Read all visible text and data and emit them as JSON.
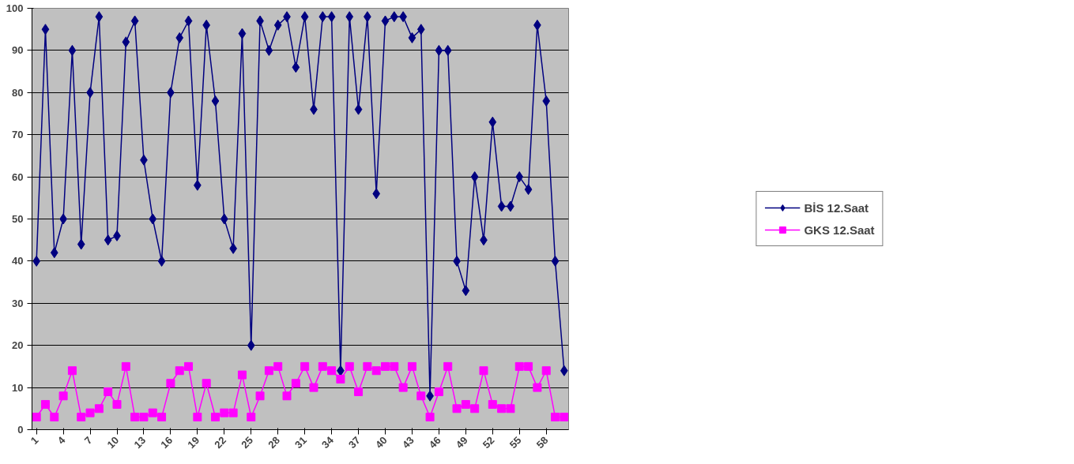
{
  "chart_data": {
    "type": "line",
    "x": [
      1,
      2,
      3,
      4,
      5,
      6,
      7,
      8,
      9,
      10,
      11,
      12,
      13,
      14,
      15,
      16,
      17,
      18,
      19,
      20,
      21,
      22,
      23,
      24,
      25,
      26,
      27,
      28,
      29,
      30,
      31,
      32,
      33,
      34,
      35,
      36,
      37,
      38,
      39,
      40,
      41,
      42,
      43,
      44,
      45,
      46,
      47,
      48,
      49,
      50,
      51,
      52,
      53,
      54,
      55,
      56,
      57,
      58,
      59,
      60
    ],
    "xlim": [
      0.5,
      60.5
    ],
    "xticks": [
      1,
      4,
      7,
      10,
      13,
      16,
      19,
      22,
      25,
      28,
      31,
      34,
      37,
      40,
      43,
      46,
      49,
      52,
      55,
      58
    ],
    "ylim": [
      0,
      100
    ],
    "yticks": [
      0,
      10,
      20,
      30,
      40,
      50,
      60,
      70,
      80,
      90,
      100
    ],
    "grid": "y",
    "legend": "right",
    "line_style": "solid",
    "series": [
      {
        "name": "BİS 12.Saat",
        "color": "#000080",
        "marker": "diamond",
        "values": [
          40,
          95,
          42,
          50,
          90,
          44,
          80,
          98,
          45,
          46,
          92,
          97,
          64,
          50,
          40,
          80,
          93,
          97,
          58,
          96,
          78,
          50,
          43,
          94,
          20,
          97,
          90,
          96,
          98,
          86,
          98,
          76,
          98,
          98,
          14,
          98,
          76,
          98,
          56,
          97,
          98,
          98,
          93,
          95,
          8,
          90,
          90,
          40,
          33,
          60,
          45,
          73,
          53,
          53,
          60,
          57,
          96,
          78,
          40,
          14
        ]
      },
      {
        "name": "GKS 12.Saat",
        "color": "#ff00ff",
        "marker": "square",
        "values": [
          3,
          6,
          3,
          8,
          14,
          3,
          4,
          5,
          9,
          6,
          15,
          3,
          3,
          4,
          3,
          11,
          14,
          15,
          3,
          11,
          3,
          4,
          4,
          13,
          3,
          8,
          14,
          15,
          8,
          11,
          15,
          10,
          15,
          14,
          12,
          15,
          9,
          15,
          14,
          15,
          15,
          10,
          15,
          8,
          3,
          9,
          15,
          5,
          6,
          5,
          14,
          6,
          5,
          5,
          15,
          15,
          10,
          14,
          3,
          3
        ]
      }
    ]
  }
}
